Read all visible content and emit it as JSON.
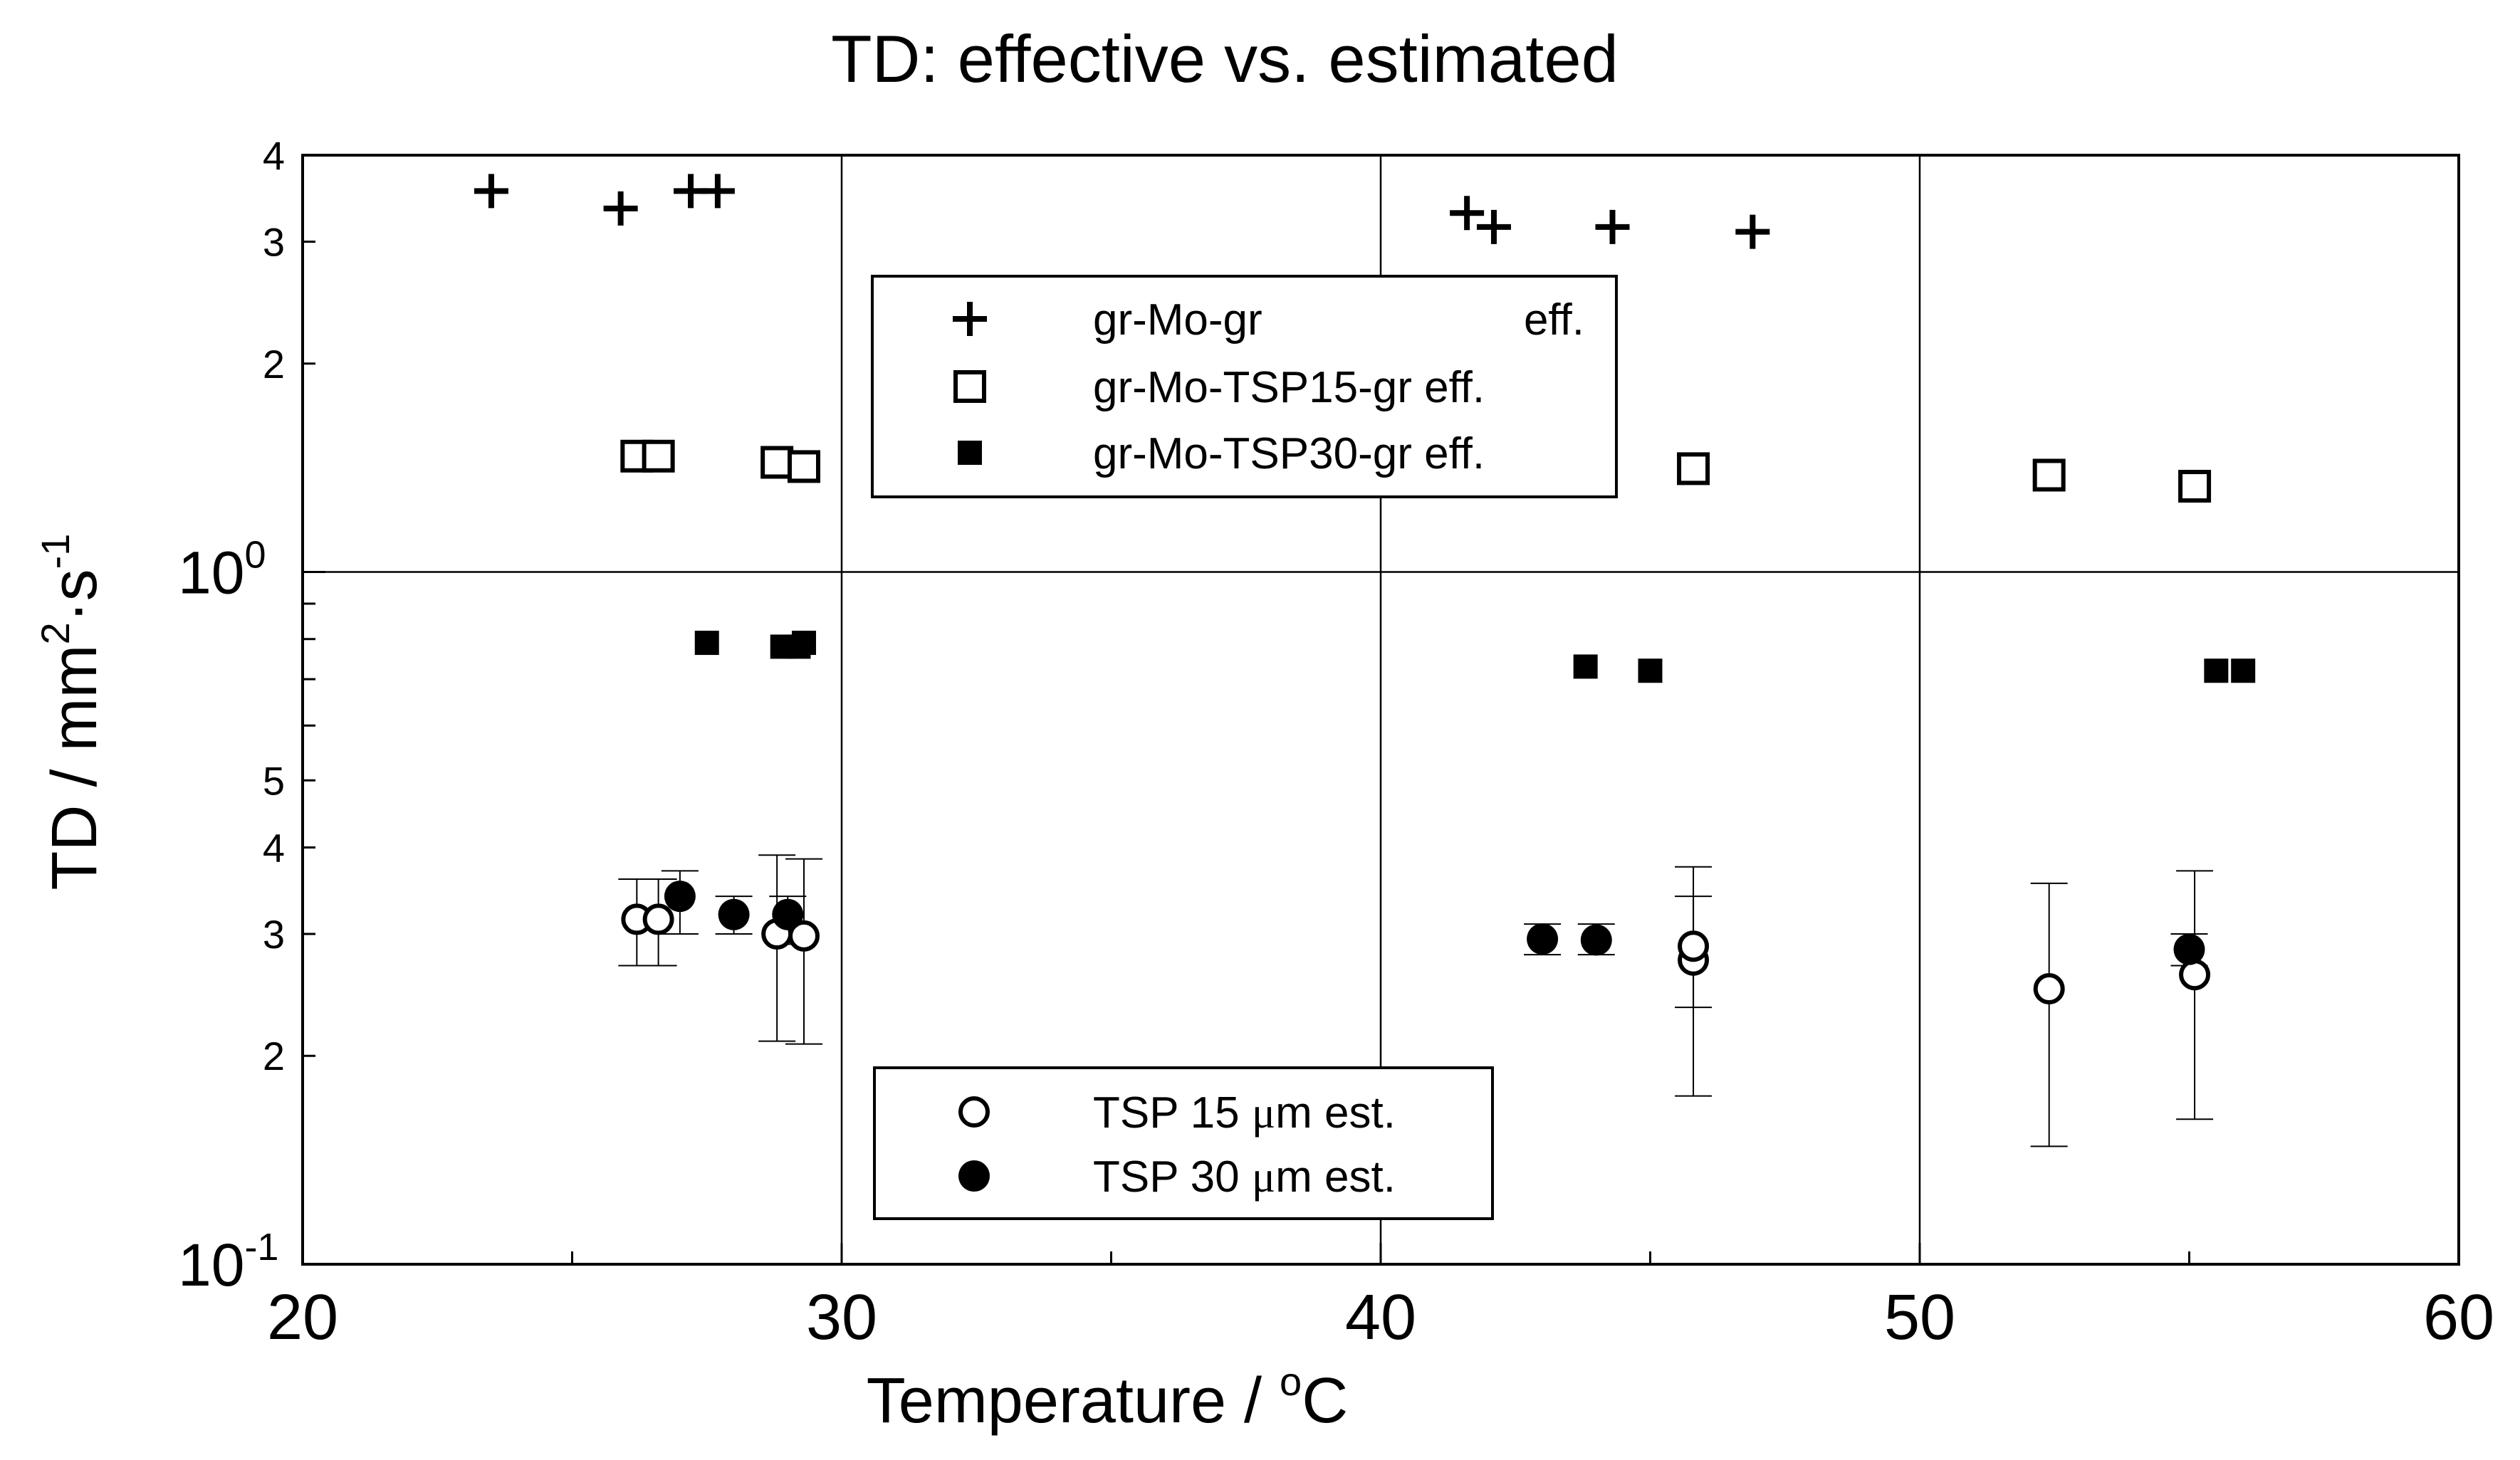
{
  "chart_data": {
    "type": "scatter",
    "title": "TD: effective vs. estimated",
    "xlabel": "Temperature  / oC",
    "xlabel_parts": {
      "main": "Temperature  / ",
      "sup": "o",
      "unit": "C"
    },
    "ylabel_parts": {
      "main": "TD  / mm",
      "sup1": "2",
      "mid": "·s",
      "sup2": "-1"
    },
    "xlim": [
      20,
      60
    ],
    "ylim": [
      0.1,
      4
    ],
    "yscale": "log",
    "x_ticks": [
      20,
      30,
      40,
      50,
      60
    ],
    "x_tick_labels": [
      "20",
      "30",
      "40",
      "50",
      "60"
    ],
    "y_decade_labels": [
      {
        "value": 0.1,
        "base": "10",
        "exp": "-1"
      },
      {
        "value": 1,
        "base": "10",
        "exp": "0"
      }
    ],
    "y_minor_labels": [
      {
        "value": 0.2,
        "label": "2"
      },
      {
        "value": 0.3,
        "label": "3"
      },
      {
        "value": 0.4,
        "label": "4"
      },
      {
        "value": 0.5,
        "label": "5"
      },
      {
        "value": 2,
        "label": "2"
      },
      {
        "value": 3,
        "label": "3"
      },
      {
        "value": 4,
        "label": "4"
      }
    ],
    "grid": {
      "x": [
        30,
        40,
        50
      ],
      "y": [
        1
      ]
    },
    "series": [
      {
        "name": "gr-Mo-gr eff.",
        "legend_name": "gr-Mo-gr",
        "legend_suffix": "eff.",
        "marker": "plus",
        "points": [
          {
            "x": 23.5,
            "y": 3.55
          },
          {
            "x": 25.9,
            "y": 3.35
          },
          {
            "x": 27.2,
            "y": 3.55
          },
          {
            "x": 27.7,
            "y": 3.55
          },
          {
            "x": 41.6,
            "y": 3.3
          },
          {
            "x": 42.1,
            "y": 3.15
          },
          {
            "x": 44.3,
            "y": 3.15
          },
          {
            "x": 46.9,
            "y": 3.1
          }
        ]
      },
      {
        "name": "gr-Mo-TSP15-gr eff.",
        "legend_name": "gr-Mo-TSP15-gr eff.",
        "marker": "open-square",
        "points": [
          {
            "x": 26.2,
            "y": 1.47
          },
          {
            "x": 26.6,
            "y": 1.47
          },
          {
            "x": 28.8,
            "y": 1.44
          },
          {
            "x": 29.3,
            "y": 1.42
          },
          {
            "x": 45.8,
            "y": 1.41
          },
          {
            "x": 52.4,
            "y": 1.38
          },
          {
            "x": 55.1,
            "y": 1.33
          }
        ]
      },
      {
        "name": "gr-Mo-TSP30-gr eff.",
        "legend_name": "gr-Mo-TSP30-gr eff.",
        "marker": "filled-square",
        "points": [
          {
            "x": 27.5,
            "y": 0.79
          },
          {
            "x": 28.9,
            "y": 0.78
          },
          {
            "x": 29.2,
            "y": 0.78
          },
          {
            "x": 29.3,
            "y": 0.79
          },
          {
            "x": 43.8,
            "y": 0.73
          },
          {
            "x": 45.0,
            "y": 0.72
          },
          {
            "x": 55.5,
            "y": 0.72
          },
          {
            "x": 56.0,
            "y": 0.72
          }
        ]
      },
      {
        "name": "TSP 15 μm est.",
        "legend_parts": {
          "pre": "TSP 15 ",
          "mu": "μ",
          "post": "m est."
        },
        "marker": "open-circle",
        "points": [
          {
            "x": 26.2,
            "y": 0.315,
            "err_low": 0.27,
            "err_high": 0.36
          },
          {
            "x": 26.6,
            "y": 0.315,
            "err_low": 0.27,
            "err_high": 0.36
          },
          {
            "x": 28.8,
            "y": 0.3,
            "err_low": 0.21,
            "err_high": 0.39
          },
          {
            "x": 29.3,
            "y": 0.298,
            "err_low": 0.208,
            "err_high": 0.385
          },
          {
            "x": 45.8,
            "y": 0.275,
            "err_low": 0.175,
            "err_high": 0.375
          },
          {
            "x": 45.8,
            "y": 0.288,
            "err_low": 0.235,
            "err_high": 0.34
          },
          {
            "x": 52.4,
            "y": 0.25,
            "err_low": 0.148,
            "err_high": 0.355
          },
          {
            "x": 55.1,
            "y": 0.262,
            "err_low": 0.162,
            "err_high": 0.37
          }
        ]
      },
      {
        "name": "TSP 30 μm est.",
        "legend_parts": {
          "pre": "TSP 30 ",
          "mu": "μ",
          "post": "m est."
        },
        "marker": "filled-circle",
        "points": [
          {
            "x": 27.0,
            "y": 0.34,
            "err_low": 0.3,
            "err_high": 0.37
          },
          {
            "x": 28.0,
            "y": 0.32,
            "err_low": 0.3,
            "err_high": 0.34
          },
          {
            "x": 29.0,
            "y": 0.32,
            "err_low": 0.29,
            "err_high": 0.34
          },
          {
            "x": 43.0,
            "y": 0.295,
            "err_low": 0.28,
            "err_high": 0.31
          },
          {
            "x": 44.0,
            "y": 0.294,
            "err_low": 0.28,
            "err_high": 0.31
          },
          {
            "x": 55.0,
            "y": 0.285,
            "err_low": 0.27,
            "err_high": 0.3
          }
        ]
      }
    ],
    "legends": [
      {
        "location": "upper-center",
        "series_indices": [
          0,
          1,
          2
        ]
      },
      {
        "location": "lower-center",
        "series_indices": [
          3,
          4
        ]
      }
    ]
  }
}
